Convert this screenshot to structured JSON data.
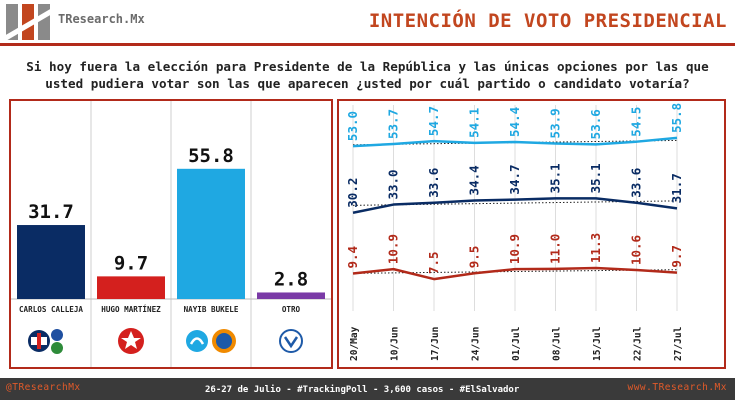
{
  "header": {
    "brand": "TResearch.Mx",
    "title": "INTENCIÓN DE VOTO PRESIDENCIAL",
    "question_line1": "Si hoy fuera la elección para Presidente de la República y las únicas opciones por las que",
    "question_line2": "usted pudiera votar son las que aparecen ¿usted por cuál partido o candidato votaría?"
  },
  "colors": {
    "accent": "#b22a1a",
    "title": "#c2461f",
    "calleja": "#0a2c64",
    "martinez": "#d4201e",
    "bukele": "#1fa8e2",
    "otro": "#7a3aa6"
  },
  "chart_data": [
    {
      "type": "bar",
      "categories": [
        "CARLOS CALLEJA",
        "HUGO MARTÍNEZ",
        "NAYIB BUKELE",
        "OTRO"
      ],
      "values": [
        31.7,
        9.7,
        55.8,
        2.8
      ],
      "value_labels": [
        "31.7",
        "9.7",
        "55.8",
        "2.8"
      ],
      "colors": [
        "#0a2c64",
        "#d4201e",
        "#1fa8e2",
        "#7a3aa6"
      ],
      "party_logos": [
        [
          "arena-logo",
          "pcn-logo",
          "pdc-logo"
        ],
        [
          "fmln-logo"
        ],
        [
          "gana-logo"
        ],
        [
          "vamos-logo"
        ]
      ]
    },
    {
      "type": "line",
      "x": [
        "20/May",
        "10/Jun",
        "17/Jun",
        "24/Jun",
        "01/Jul",
        "08/Jul",
        "15/Jul",
        "22/Jul",
        "27/Jul"
      ],
      "series": [
        {
          "values": [
            53.0,
            53.7,
            54.7,
            54.1,
            54.4,
            53.9,
            53.6,
            54.5,
            55.8
          ],
          "labels": [
            "53.0",
            "53.7",
            "54.7",
            "54.1",
            "54.4",
            "53.9",
            "53.6",
            "54.5",
            "55.8"
          ],
          "color": "#1fa8e2"
        },
        {
          "values": [
            30.2,
            33.0,
            33.6,
            34.4,
            34.7,
            35.1,
            35.1,
            33.6,
            31.7
          ],
          "labels": [
            "30.2",
            "33.0",
            "33.6",
            "34.4",
            "34.7",
            "35.1",
            "35.1",
            "33.6",
            "31.7"
          ],
          "color": "#0a2c64"
        },
        {
          "values": [
            9.4,
            10.9,
            7.5,
            9.5,
            10.9,
            11.0,
            11.3,
            10.6,
            9.7
          ],
          "labels": [
            "9.4",
            "10.9",
            "7.5",
            "9.5",
            "10.9",
            "11.0",
            "11.3",
            "10.6",
            "9.7"
          ],
          "color": "#b22a1a"
        }
      ],
      "trendlines": true,
      "vertical_grid": true
    }
  ],
  "footer": {
    "left": "@TResearchMx",
    "center": "26-27 de Julio - #TrackingPoll - 3,600 casos - #ElSalvador",
    "right": "www.TResearch.Mx"
  }
}
